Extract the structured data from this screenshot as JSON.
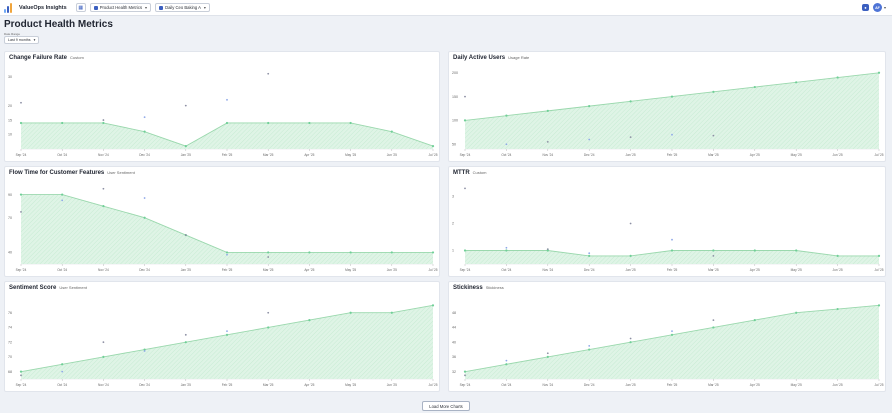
{
  "app": {
    "name": "ValueOps Insights"
  },
  "toolbar": {
    "dashboard_select": "Product Health Metrics",
    "team_select": "Daily Ceo Baking A"
  },
  "user": {
    "initials": "AF"
  },
  "header": {
    "title": "Product Health Metrics",
    "date_label": "Date Range",
    "date_value": "Last 9 months"
  },
  "colors": {
    "accent": "#3b5fc0",
    "fill": "#dff4e6",
    "line": "#9ad8ad",
    "point": "#6fcf97",
    "scatter": "#8c8fa3"
  },
  "panels": [
    {
      "title": "Change Failure Rate",
      "subtitle": "Custom",
      "chart_data": {
        "type": "area",
        "categories": [
          "Sep '24",
          "Oct '24",
          "Nov '24",
          "Dec '24",
          "Jan '25",
          "Feb '25",
          "Mar '25",
          "Apr '25",
          "May '25",
          "Jun '25",
          "Jul '25"
        ],
        "series": [
          {
            "values": [
              14,
              14,
              14,
              11,
              6,
              14,
              14,
              14,
              14,
              11,
              6
            ]
          }
        ],
        "scatter": [
          [
            0,
            21
          ],
          [
            2,
            15
          ],
          [
            3,
            16
          ],
          [
            4,
            20
          ],
          [
            5,
            22
          ],
          [
            6,
            31
          ]
        ],
        "yticks": [
          "10",
          "15",
          "20",
          "30"
        ],
        "ylim": [
          5,
          33
        ]
      }
    },
    {
      "title": "Daily Active Users",
      "subtitle": "Usage Rate",
      "chart_data": {
        "type": "area",
        "categories": [
          "Sep '24",
          "Oct '24",
          "Nov '24",
          "Dec '24",
          "Jan '25",
          "Feb '25",
          "Mar '25",
          "Apr '25",
          "May '25",
          "Jun '25",
          "Jul '25"
        ],
        "series": [
          {
            "values": [
              100,
              110,
              120,
              130,
              140,
              150,
              160,
              170,
              180,
              190,
              200
            ]
          }
        ],
        "scatter": [
          [
            0,
            150
          ],
          [
            1,
            50
          ],
          [
            2,
            55
          ],
          [
            3,
            60
          ],
          [
            4,
            65
          ],
          [
            5,
            70
          ],
          [
            6,
            68
          ]
        ],
        "yticks": [
          "50",
          "100",
          "150",
          "200"
        ],
        "ylim": [
          40,
          210
        ]
      }
    },
    {
      "title": "Flow Time for Customer Features",
      "subtitle": "User Sentiment",
      "chart_data": {
        "type": "area",
        "categories": [
          "Sep '24",
          "Oct '24",
          "Nov '24",
          "Dec '24",
          "Jan '25",
          "Feb '25",
          "Mar '25",
          "Apr '25",
          "May '25",
          "Jun '25",
          "Jul '25"
        ],
        "series": [
          {
            "values": [
              90,
              90,
              80,
              70,
              55,
              40,
              40,
              40,
              40,
              40,
              40
            ]
          }
        ],
        "scatter": [
          [
            0,
            75
          ],
          [
            1,
            85
          ],
          [
            2,
            95
          ],
          [
            3,
            87
          ],
          [
            4,
            55
          ],
          [
            5,
            38
          ],
          [
            6,
            36
          ]
        ],
        "yticks": [
          "40",
          "70",
          "90"
        ],
        "ylim": [
          30,
          100
        ]
      }
    },
    {
      "title": "MTTR",
      "subtitle": "Custom",
      "chart_data": {
        "type": "area",
        "categories": [
          "Sep '24",
          "Oct '24",
          "Nov '24",
          "Dec '24",
          "Jan '25",
          "Feb '25",
          "Mar '25",
          "Apr '25",
          "May '25",
          "Jun '25",
          "Jul '25"
        ],
        "series": [
          {
            "values": [
              1,
              1,
              1,
              0.8,
              0.8,
              1,
              1,
              1,
              1,
              0.8,
              0.8
            ]
          }
        ],
        "scatter": [
          [
            0,
            3.3
          ],
          [
            1,
            1.1
          ],
          [
            2,
            1.05
          ],
          [
            3,
            0.9
          ],
          [
            4,
            2
          ],
          [
            5,
            1.4
          ],
          [
            6,
            0.8
          ]
        ],
        "yticks": [
          "1",
          "2",
          "3"
        ],
        "ylim": [
          0.5,
          3.5
        ]
      }
    },
    {
      "title": "Sentiment Score",
      "subtitle": "User Sentiment",
      "chart_data": {
        "type": "area",
        "categories": [
          "Sep '24",
          "Oct '24",
          "Nov '24",
          "Dec '24",
          "Jan '25",
          "Feb '25",
          "Mar '25",
          "Apr '25",
          "May '25",
          "Jun '25",
          "Jul '25"
        ],
        "series": [
          {
            "values": [
              68,
              69,
              70,
              71,
              72,
              73,
              74,
              75,
              76,
              76,
              77
            ]
          }
        ],
        "scatter": [
          [
            0,
            67.5
          ],
          [
            1,
            68
          ],
          [
            2,
            72
          ],
          [
            3,
            70.8
          ],
          [
            4,
            73
          ],
          [
            5,
            73.5
          ],
          [
            6,
            76
          ]
        ],
        "yticks": [
          "68",
          "70",
          "72",
          "74",
          "76"
        ],
        "ylim": [
          67,
          78
        ]
      }
    },
    {
      "title": "Stickiness",
      "subtitle": "Stickiness",
      "chart_data": {
        "type": "area",
        "categories": [
          "Sep '24",
          "Oct '24",
          "Nov '24",
          "Dec '24",
          "Jan '25",
          "Feb '25",
          "Mar '25",
          "Apr '25",
          "May '25",
          "Jun '25",
          "Jul '25"
        ],
        "series": [
          {
            "values": [
              32,
              34,
              36,
              38,
              40,
              42,
              44,
              46,
              48,
              49,
              50
            ]
          }
        ],
        "scatter": [
          [
            0,
            31
          ],
          [
            1,
            35
          ],
          [
            2,
            37
          ],
          [
            3,
            39
          ],
          [
            4,
            41
          ],
          [
            5,
            43
          ],
          [
            6,
            46
          ]
        ],
        "yticks": [
          "32",
          "36",
          "40",
          "44",
          "48"
        ],
        "ylim": [
          30,
          52
        ]
      }
    }
  ],
  "footer": {
    "load_more": "Load More Charts"
  }
}
